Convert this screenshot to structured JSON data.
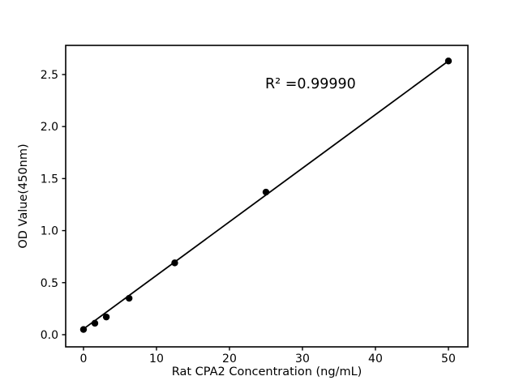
{
  "chart_data": {
    "type": "scatter",
    "title": "",
    "xlabel": "Rat CPA2 Concentration (ng/mL)",
    "ylabel": "OD Value(450nm)",
    "annotation": "R² =0.99990",
    "x": [
      0,
      1.56,
      3.125,
      6.25,
      12.5,
      25,
      50
    ],
    "y": [
      0.05,
      0.11,
      0.17,
      0.35,
      0.69,
      1.37,
      2.63
    ],
    "fit_line": {
      "x": [
        0,
        50
      ],
      "y": [
        0.055,
        2.63
      ]
    },
    "xticks": [
      0,
      10,
      20,
      30,
      40,
      50
    ],
    "yticks": [
      0.0,
      0.5,
      1.0,
      1.5,
      2.0,
      2.5
    ],
    "xlim": [
      -2.44,
      52.67
    ],
    "ylim": [
      -0.117,
      2.78
    ],
    "grid": false,
    "legend_position": "none",
    "marker_color": "#000000",
    "line_color": "#000000",
    "spine_color": "#000000",
    "background": "#ffffff"
  }
}
